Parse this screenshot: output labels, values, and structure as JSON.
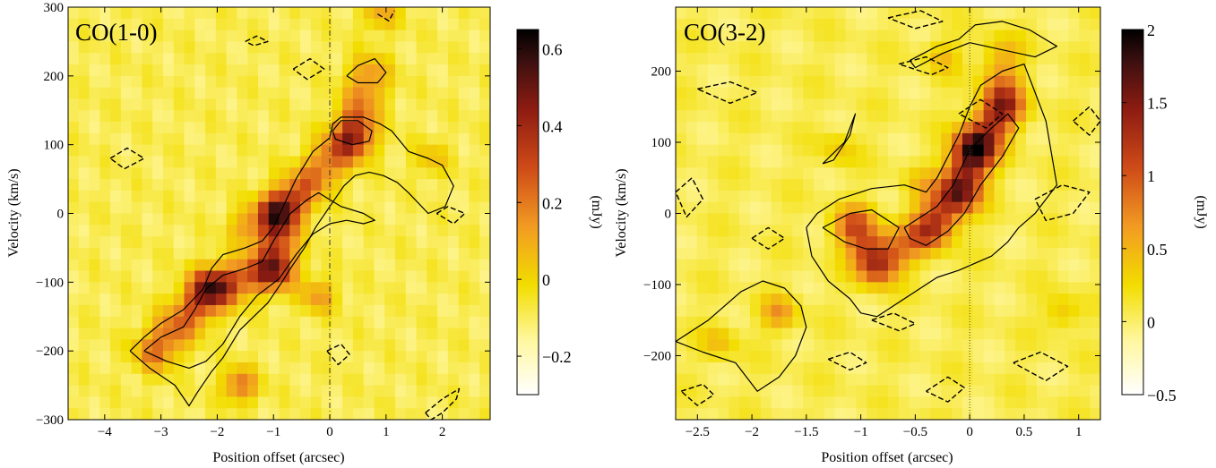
{
  "chart_data": [
    {
      "type": "heatmap",
      "title": "CO(1-0)",
      "xlabel": "Position offset (arcsec)",
      "ylabel": "Velocity (km/s)",
      "xlim": [
        -4.65,
        2.85
      ],
      "ylim": [
        -300,
        300
      ],
      "xticks": [
        -4,
        -3,
        -2,
        -1,
        0,
        1,
        2
      ],
      "yticks": [
        -300,
        -200,
        -100,
        0,
        100,
        200,
        300
      ],
      "colorbar": {
        "label": "(mJy)",
        "range": [
          -0.3,
          0.65
        ],
        "ticks": [
          -0.2,
          0,
          0.2,
          0.4,
          0.6
        ]
      },
      "reference_line_x": 0,
      "grid": false,
      "ridge": [
        [
          -3.1,
          -200,
          0.58
        ],
        [
          -2.1,
          -110,
          0.62
        ],
        [
          -1.0,
          -80,
          0.55
        ],
        [
          -0.9,
          0,
          0.65
        ],
        [
          0.4,
          110,
          0.5
        ],
        [
          0.7,
          200,
          0.45
        ]
      ],
      "blobs": [
        {
          "x": -1.6,
          "y": -250,
          "peak": 0.5
        },
        {
          "x": -0.2,
          "y": -120,
          "peak": 0.35
        },
        {
          "x": 1.8,
          "y": 80,
          "peak": 0.2
        },
        {
          "x": 0.9,
          "y": 290,
          "peak": 0.3
        },
        {
          "x": -1.5,
          "y": -20,
          "peak": 0.3
        }
      ],
      "solid_contours": [
        {
          "x": [
            -3.55,
            -3.3,
            -3.0,
            -2.6,
            -2.25,
            -2.1,
            -1.9,
            -1.5,
            -1.2,
            -1.0,
            -0.8,
            -0.6,
            -0.3,
            0.0,
            0.05,
            0.2,
            0.6,
            0.9,
            1.1,
            1.4,
            1.75,
            2.0,
            2.2,
            2.05,
            1.75,
            1.4,
            1.2,
            0.95,
            0.7,
            0.45,
            0.25,
            0.0,
            -0.25,
            -0.45,
            -0.7,
            -0.85,
            -1.1,
            -1.6,
            -1.9,
            -2.1,
            -2.35,
            -2.5,
            -2.75,
            -3.2,
            -3.55
          ],
          "y": [
            -200,
            -180,
            -160,
            -140,
            -110,
            -80,
            -60,
            -50,
            -40,
            -20,
            15,
            50,
            90,
            110,
            130,
            140,
            140,
            130,
            120,
            90,
            80,
            70,
            40,
            10,
            0,
            30,
            45,
            55,
            60,
            55,
            40,
            10,
            -20,
            -50,
            -80,
            -100,
            -130,
            -170,
            -210,
            -230,
            -260,
            -280,
            -250,
            -225,
            -200
          ]
        },
        {
          "x": [
            -3.3,
            -3.0,
            -2.6,
            -2.4,
            -2.2,
            -1.9,
            -1.5,
            -1.2,
            -1.0,
            -0.7,
            -0.4,
            -0.2,
            0.0,
            0.2,
            0.6,
            0.8,
            0.6,
            0.3,
            0.0,
            -0.3,
            -0.6,
            -0.9,
            -1.3,
            -1.6,
            -1.9,
            -2.2,
            -2.5,
            -2.9,
            -3.3
          ],
          "y": [
            -200,
            -180,
            -165,
            -140,
            -110,
            -90,
            -80,
            -70,
            -40,
            0,
            20,
            30,
            20,
            10,
            0,
            -10,
            -15,
            -10,
            -15,
            -30,
            -60,
            -95,
            -120,
            -150,
            -190,
            -215,
            -225,
            -215,
            -200
          ]
        },
        {
          "x": [
            0.05,
            0.2,
            0.5,
            0.75,
            0.7,
            0.4,
            0.1,
            0.05
          ],
          "y": [
            120,
            135,
            135,
            120,
            105,
            100,
            108,
            120
          ]
        },
        {
          "x": [
            0.3,
            0.5,
            0.8,
            1.0,
            0.85,
            0.5,
            0.3
          ],
          "y": [
            200,
            215,
            225,
            205,
            190,
            190,
            200
          ]
        }
      ],
      "dashed_contours": [
        {
          "x": [
            -3.9,
            -3.6,
            -3.3,
            -3.65,
            -3.9
          ],
          "y": [
            80,
            95,
            80,
            65,
            80
          ]
        },
        {
          "x": [
            -0.65,
            -0.35,
            -0.1,
            -0.4,
            -0.65
          ],
          "y": [
            210,
            225,
            210,
            195,
            210
          ]
        },
        {
          "x": [
            -0.05,
            0.2,
            0.35,
            0.15,
            -0.05
          ],
          "y": [
            -200,
            -190,
            -205,
            -220,
            -200
          ]
        },
        {
          "x": [
            1.7,
            2.0,
            2.3,
            2.25,
            2.0,
            1.8,
            1.7
          ],
          "y": [
            -290,
            -270,
            -255,
            -270,
            -290,
            -300,
            -290
          ]
        },
        {
          "x": [
            1.9,
            2.1,
            2.4,
            2.2,
            1.9
          ],
          "y": [
            0,
            10,
            0,
            -15,
            0
          ]
        },
        {
          "x": [
            -1.5,
            -1.3,
            -1.1,
            -1.35,
            -1.5
          ],
          "y": [
            250,
            258,
            250,
            244,
            250
          ]
        },
        {
          "x": [
            0.85,
            1.05,
            1.15
          ],
          "y": [
            290,
            280,
            295
          ]
        }
      ]
    },
    {
      "type": "heatmap",
      "title": "CO(3-2)",
      "xlabel": "Position offset (arcsec)",
      "ylabel": "Velocity (km/s)",
      "xlim": [
        -2.7,
        1.2
      ],
      "ylim": [
        -290,
        290
      ],
      "xticks": [
        -2.5,
        -2,
        -1.5,
        -1,
        -0.5,
        0,
        0.5,
        1
      ],
      "yticks": [
        -200,
        -100,
        0,
        100,
        200
      ],
      "colorbar": {
        "label": "(mJy)",
        "range": [
          -0.5,
          2
        ],
        "ticks": [
          -0.5,
          0,
          0.5,
          1,
          1.5,
          2
        ]
      },
      "reference_line_x": 0,
      "grid": false,
      "ridge": [
        [
          -1.05,
          -20,
          2.0
        ],
        [
          -0.85,
          -70,
          1.3
        ],
        [
          -0.35,
          -20,
          1.2
        ],
        [
          -0.1,
          30,
          1.6
        ],
        [
          0.05,
          90,
          2.0
        ],
        [
          0.3,
          150,
          1.4
        ],
        [
          0.3,
          220,
          0.9
        ]
      ],
      "blobs": [
        {
          "x": -1.75,
          "y": -140,
          "peak": 1.0
        },
        {
          "x": -2.3,
          "y": -180,
          "peak": 0.6
        },
        {
          "x": -1.2,
          "y": 90,
          "peak": 0.5
        },
        {
          "x": -0.45,
          "y": 40,
          "peak": 0.5
        },
        {
          "x": 0.85,
          "y": -140,
          "peak": 0.6
        },
        {
          "x": -0.25,
          "y": 220,
          "peak": 0.6
        }
      ],
      "solid_contours": [
        {
          "x": [
            -1.5,
            -1.4,
            -1.2,
            -0.9,
            -0.6,
            -0.4,
            -0.3,
            -0.1,
            0.0,
            0.1,
            0.3,
            0.5,
            0.6,
            0.7,
            0.8,
            0.6,
            0.45,
            0.35,
            0.2,
            -0.1,
            -0.3,
            -0.5,
            -0.7,
            -0.85,
            -1.0,
            -1.1,
            -1.3,
            -1.45,
            -1.5
          ],
          "y": [
            -20,
            0,
            20,
            35,
            40,
            30,
            50,
            110,
            150,
            180,
            200,
            210,
            170,
            130,
            40,
            0,
            -20,
            -40,
            -60,
            -80,
            -90,
            -110,
            -130,
            -145,
            -140,
            -120,
            -95,
            -60,
            -20
          ]
        },
        {
          "x": [
            -1.35,
            -1.1,
            -0.9,
            -0.65,
            -0.75,
            -0.95,
            -1.15,
            -1.35
          ],
          "y": [
            -20,
            0,
            5,
            -20,
            -50,
            -50,
            -40,
            -20
          ]
        },
        {
          "x": [
            -0.6,
            -0.3,
            -0.15,
            0.0,
            0.2,
            0.35,
            0.45,
            0.3,
            0.1,
            -0.05,
            -0.2,
            -0.4,
            -0.55,
            -0.6
          ],
          "y": [
            -20,
            10,
            40,
            90,
            120,
            140,
            120,
            80,
            40,
            0,
            -25,
            -45,
            -35,
            -20
          ]
        },
        {
          "x": [
            -2.7,
            -2.4,
            -2.1,
            -1.9,
            -1.7,
            -1.55,
            -1.5,
            -1.6,
            -1.75,
            -1.95,
            -2.15,
            -2.45,
            -2.7
          ],
          "y": [
            -180,
            -150,
            -110,
            -95,
            -105,
            -130,
            -160,
            -200,
            -230,
            -250,
            -210,
            -195,
            -180
          ]
        },
        {
          "x": [
            -0.55,
            -0.3,
            -0.1,
            0.05,
            0.3,
            0.55,
            0.8,
            0.6,
            0.3,
            0.0,
            -0.25,
            -0.5,
            -0.55
          ],
          "y": [
            215,
            235,
            245,
            265,
            270,
            258,
            235,
            220,
            230,
            240,
            225,
            205,
            215
          ]
        },
        {
          "x": [
            -1.35,
            -1.15,
            -1.05,
            -1.1,
            -1.25,
            -1.35
          ],
          "y": [
            70,
            100,
            140,
            110,
            75,
            70
          ]
        }
      ],
      "dashed_contours": [
        {
          "x": [
            -2.5,
            -2.2,
            -1.95,
            -2.2,
            -2.5
          ],
          "y": [
            175,
            185,
            170,
            155,
            175
          ]
        },
        {
          "x": [
            -0.75,
            -0.45,
            -0.25,
            -0.5,
            -0.75
          ],
          "y": [
            275,
            285,
            270,
            260,
            275
          ]
        },
        {
          "x": [
            -0.65,
            -0.4,
            -0.2,
            -0.35,
            -0.65
          ],
          "y": [
            210,
            220,
            205,
            195,
            210
          ]
        },
        {
          "x": [
            -0.1,
            0.1,
            0.3,
            0.15,
            -0.1
          ],
          "y": [
            140,
            160,
            140,
            120,
            140
          ]
        },
        {
          "x": [
            -2.7,
            -2.55,
            -2.45,
            -2.6,
            -2.7
          ],
          "y": [
            30,
            50,
            20,
            -5,
            30
          ]
        },
        {
          "x": [
            -2.0,
            -1.85,
            -1.7,
            -1.85,
            -2.0
          ],
          "y": [
            -35,
            -20,
            -35,
            -50,
            -35
          ]
        },
        {
          "x": [
            0.6,
            0.85,
            1.1,
            0.95,
            0.7,
            0.6
          ],
          "y": [
            20,
            40,
            30,
            0,
            -10,
            20
          ]
        },
        {
          "x": [
            0.95,
            1.1,
            1.2,
            1.1,
            0.95
          ],
          "y": [
            130,
            150,
            130,
            110,
            130
          ]
        },
        {
          "x": [
            -0.4,
            -0.2,
            -0.05,
            -0.2,
            -0.4
          ],
          "y": [
            -250,
            -230,
            -245,
            -265,
            -250
          ]
        },
        {
          "x": [
            0.4,
            0.65,
            0.9,
            0.7,
            0.4
          ],
          "y": [
            -210,
            -195,
            -215,
            -235,
            -210
          ]
        },
        {
          "x": [
            -1.3,
            -1.1,
            -0.95,
            -1.1,
            -1.3
          ],
          "y": [
            -205,
            -195,
            -210,
            -220,
            -205
          ]
        },
        {
          "x": [
            -0.9,
            -0.7,
            -0.5,
            -0.65,
            -0.9
          ],
          "y": [
            -150,
            -140,
            -155,
            -165,
            -150
          ]
        },
        {
          "x": [
            -2.65,
            -2.45,
            -2.35,
            -2.5,
            -2.65
          ],
          "y": [
            -250,
            -240,
            -255,
            -270,
            -250
          ]
        }
      ]
    }
  ]
}
